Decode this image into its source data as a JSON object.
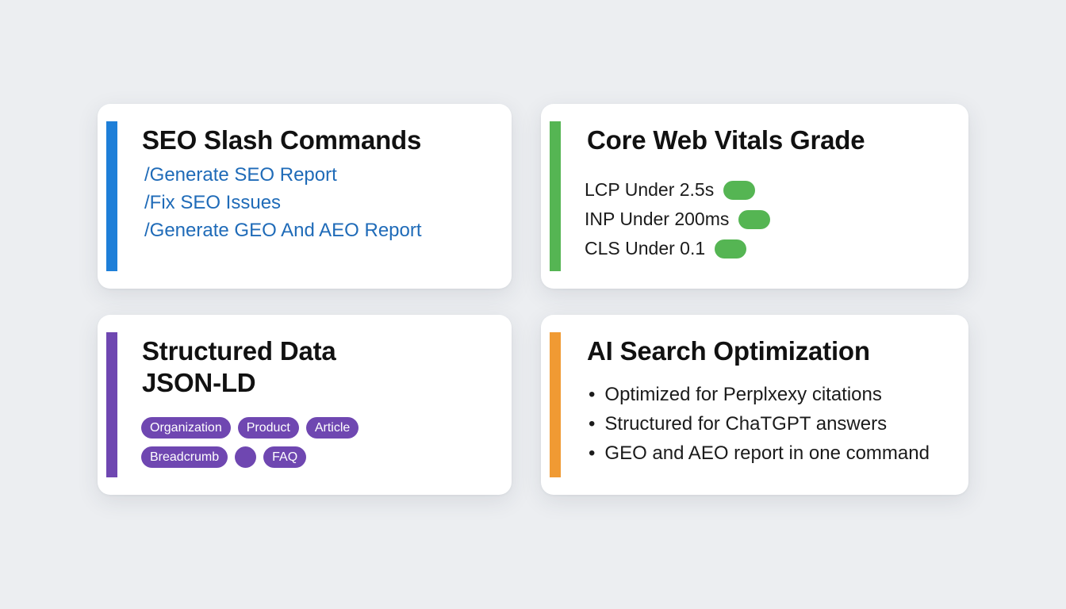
{
  "colors": {
    "blue": "#1e7fd8",
    "green": "#55b553",
    "purple": "#6f47b1",
    "orange": "#f09a33",
    "link": "#1f6bb8"
  },
  "cards": [
    {
      "title": "SEO Slash Commands",
      "accent": "#1e7fd8",
      "commands": [
        "/Generate SEO Report",
        "/Fix SEO Issues",
        "/Generate GEO And AEO Report"
      ]
    },
    {
      "title": "Core Web Vitals Grade",
      "accent": "#55b553",
      "vitals": [
        {
          "label": "LCP Under 2.5s",
          "status": "pass",
          "color": "#55b553"
        },
        {
          "label": "INP Under 200ms",
          "status": "pass",
          "color": "#55b553"
        },
        {
          "label": "CLS Under 0.1",
          "status": "pass",
          "color": "#55b553"
        }
      ]
    },
    {
      "title_line1": "Structured Data",
      "title_line2": "JSON-LD",
      "accent": "#6f47b1",
      "tags_row1": [
        "Organization",
        "Product",
        "Article"
      ],
      "tags_row2": [
        "Breadcrumb",
        "",
        "FAQ"
      ]
    },
    {
      "title": "AI Search Optimization",
      "accent": "#f09a33",
      "bullets": [
        "Optimized for Perplxexy citations",
        "Structured for ChaTGPT answers",
        "GEO and AEO report in one command"
      ]
    }
  ]
}
